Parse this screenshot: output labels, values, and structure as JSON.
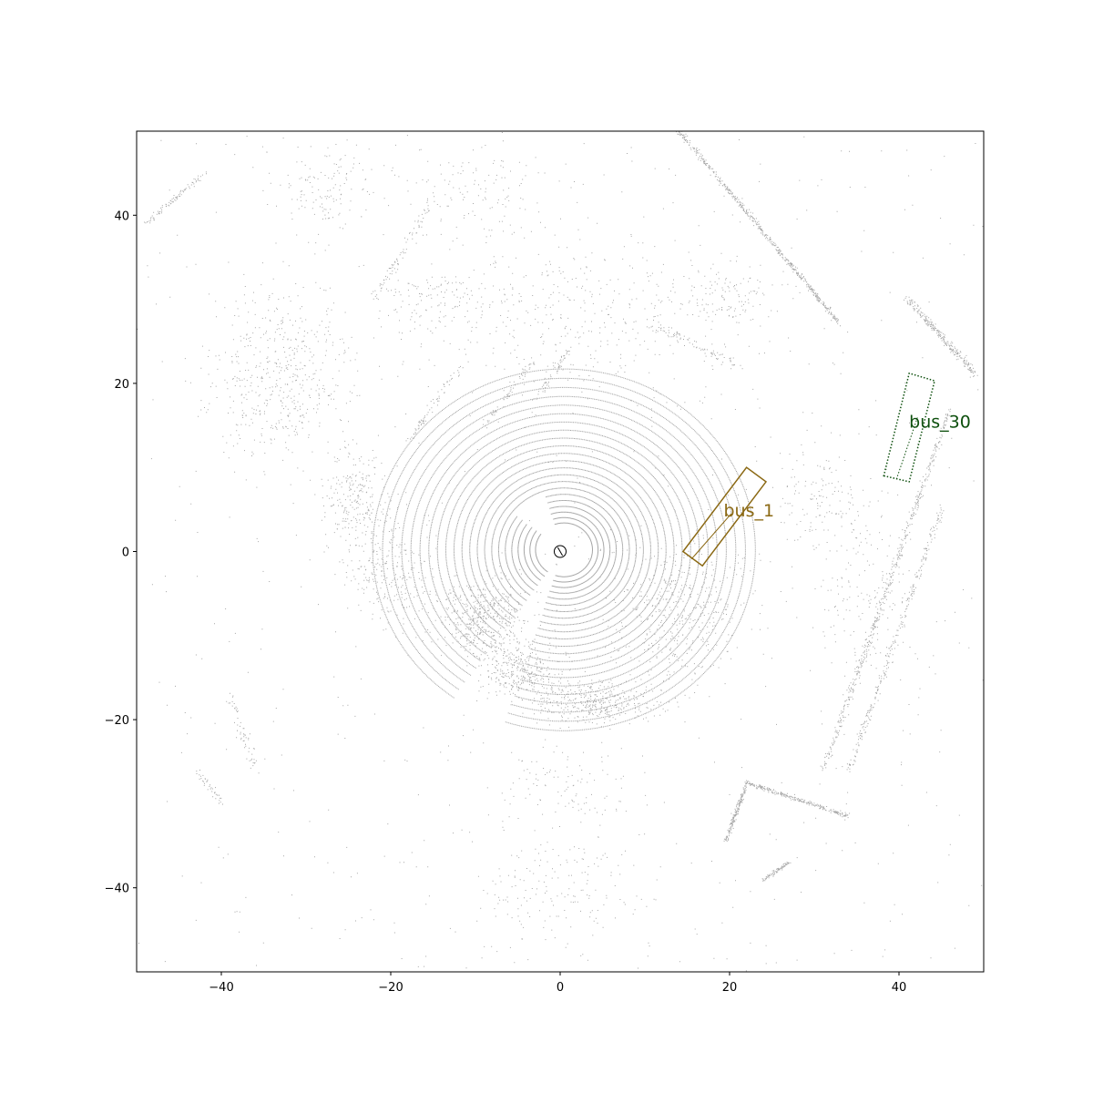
{
  "chart_data": {
    "type": "scatter",
    "title": "",
    "xlabel": "",
    "ylabel": "",
    "xlim": [
      -50,
      50
    ],
    "ylim": [
      -50,
      50
    ],
    "grid": false,
    "x_ticks": [
      -40,
      -20,
      0,
      20,
      40
    ],
    "y_ticks": [
      -40,
      -20,
      0,
      20,
      40
    ],
    "x_tick_labels": [
      "−40",
      "−20",
      "0",
      "20",
      "40"
    ],
    "y_tick_labels": [
      "−40",
      "−20",
      "0",
      "20",
      "40"
    ],
    "point_color": "#000000",
    "ego": {
      "x": 0,
      "y": 0,
      "radius": 0.7
    },
    "boxes": [
      {
        "label": "bus_1",
        "color": "#8b6914",
        "style": "solid",
        "corners": [
          [
            14.5,
            0.0
          ],
          [
            16.8,
            -1.7
          ],
          [
            24.3,
            8.3
          ],
          [
            22.0,
            10.0
          ]
        ],
        "heading_line": [
          [
            15.5,
            -0.9
          ],
          [
            20.2,
            4.5
          ]
        ],
        "label_pos": [
          19.3,
          4.8
        ]
      },
      {
        "label": "bus_30",
        "color": "#0d4f0d",
        "style": "dotted",
        "corners": [
          [
            38.2,
            9.0
          ],
          [
            41.2,
            8.3
          ],
          [
            44.2,
            20.3
          ],
          [
            41.2,
            21.2
          ]
        ],
        "heading_line": [
          [
            39.7,
            8.6
          ],
          [
            42.2,
            16.0
          ]
        ],
        "label_pos": [
          41.2,
          15.4
        ]
      }
    ]
  }
}
